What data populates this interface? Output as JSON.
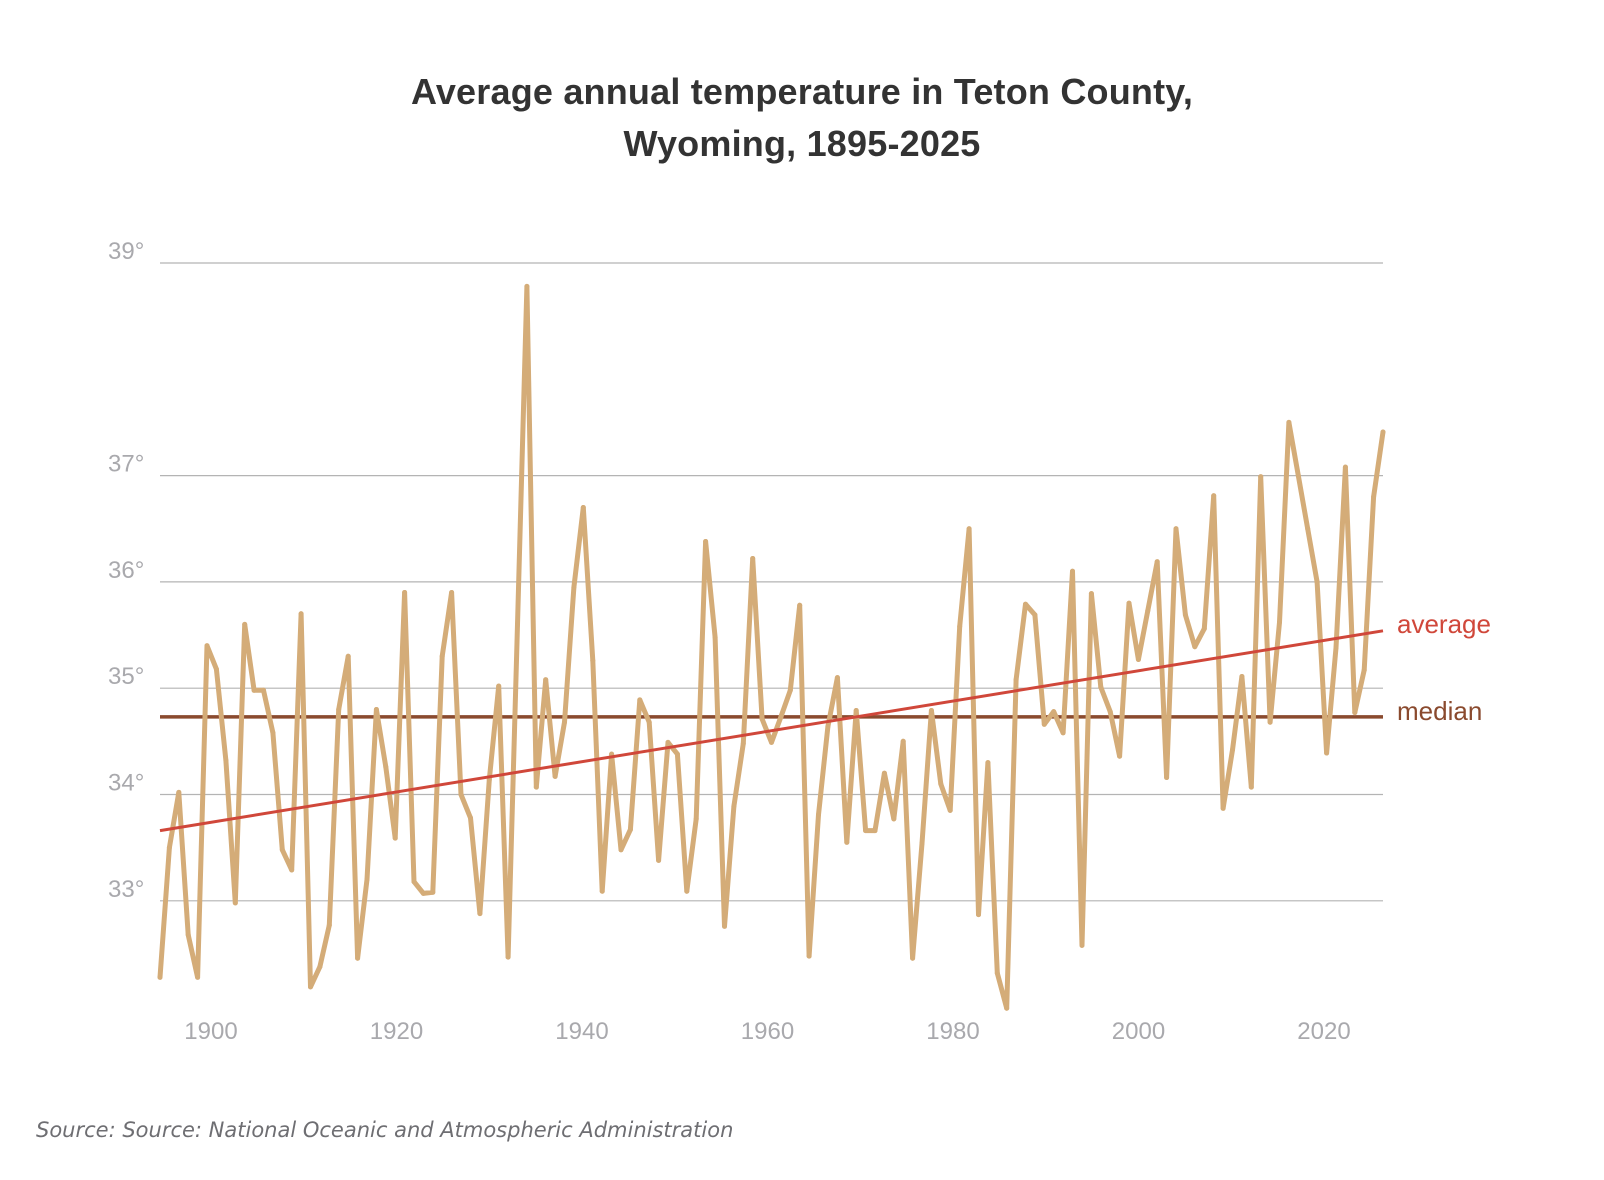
{
  "chart_data": {
    "type": "line",
    "title_lines": [
      "Average annual temperature in Teton County,",
      "Wyoming, 1895-2025"
    ],
    "xlabel": "",
    "ylabel": "",
    "x_ticks": [
      1900,
      1920,
      1940,
      1960,
      1980,
      2000,
      2020
    ],
    "x_tick_labels": [
      "1900",
      "1920",
      "1940",
      "1960",
      "1980",
      "2000",
      "2020"
    ],
    "y_ticks": [
      33,
      34,
      35,
      36,
      37,
      39
    ],
    "y_tick_labels": [
      "33°",
      "34°",
      "35°",
      "36°",
      "37°",
      "39°"
    ],
    "xlim": [
      1895,
      2025
    ],
    "ylim": [
      32,
      39
    ],
    "grid": true,
    "series": [
      {
        "name": "Average annual temperature",
        "color": "#d4ac78",
        "start_year": 1895,
        "values": [
          32.28,
          33.5,
          34.02,
          32.68,
          32.28,
          35.4,
          35.18,
          34.32,
          32.98,
          35.6,
          34.98,
          34.98,
          34.58,
          33.48,
          33.29,
          35.7,
          32.19,
          32.38,
          32.77,
          34.8,
          35.3,
          32.46,
          33.2,
          34.8,
          34.26,
          33.59,
          35.9,
          33.18,
          33.07,
          33.08,
          35.3,
          35.9,
          34.0,
          33.78,
          32.88,
          34.14,
          35.02,
          32.47,
          35.6,
          38.78,
          34.07,
          35.08,
          34.17,
          34.68,
          35.95,
          36.7,
          35.26,
          33.09,
          34.38,
          33.48,
          33.67,
          34.89,
          34.68,
          33.38,
          34.49,
          34.38,
          33.09,
          33.77,
          36.38,
          35.48,
          32.76,
          33.89,
          34.48,
          36.22,
          34.71,
          34.49,
          34.73,
          34.98,
          35.78,
          32.48,
          33.81,
          34.64,
          35.1,
          33.55,
          34.79,
          33.66,
          33.66,
          34.2,
          33.77,
          34.5,
          32.46,
          33.54,
          34.79,
          34.1,
          33.85,
          35.58,
          36.5,
          32.87,
          34.3,
          32.32,
          31.99,
          35.08,
          35.79,
          35.69,
          34.66,
          34.78,
          34.58,
          36.1,
          32.58,
          35.89,
          35.01,
          34.78,
          34.36,
          35.8,
          35.27,
          35.73,
          36.19,
          34.16,
          36.5,
          35.69,
          35.39,
          35.56,
          36.81,
          33.87,
          34.42,
          35.11,
          34.07,
          36.99,
          34.68,
          35.62,
          37.5,
          37.0,
          36.5,
          36.0,
          34.39,
          35.38,
          37.08,
          34.77,
          35.17,
          36.8,
          37.41
        ]
      }
    ],
    "reference_lines": [
      {
        "name": "average",
        "label": "average",
        "type": "trend",
        "start_value": 33.66,
        "end_value": 35.54,
        "color": "#d0473a"
      },
      {
        "name": "median",
        "label": "median",
        "type": "horizontal",
        "value": 34.73,
        "color": "#8a4a2e"
      }
    ],
    "source": "Source: Source: National Oceanic and Atmospheric Administration"
  }
}
